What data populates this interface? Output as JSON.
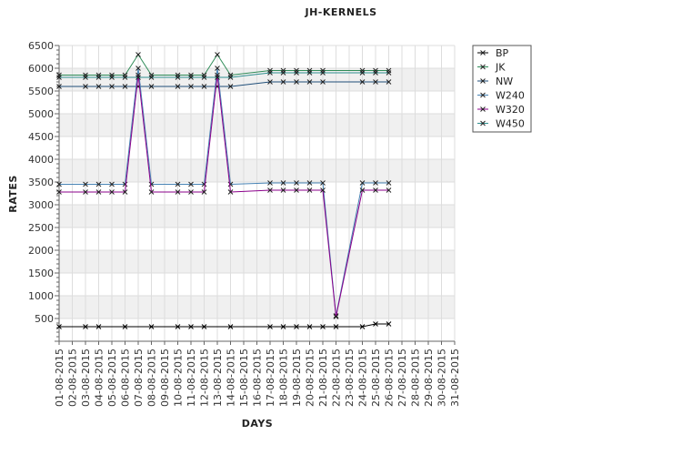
{
  "chart_data": {
    "type": "line",
    "title": "JH-KERNELS",
    "xlabel": "DAYS",
    "ylabel": "RATES",
    "ylim": [
      0,
      6500
    ],
    "yticks": [
      500,
      1000,
      1500,
      2000,
      2500,
      3000,
      3500,
      4000,
      4500,
      5000,
      5500,
      6000,
      6500
    ],
    "grid": true,
    "legend_position": "right",
    "categories": [
      "01-08-2015",
      "02-08-2015",
      "03-08-2015",
      "04-08-2015",
      "05-08-2015",
      "06-08-2015",
      "07-08-2015",
      "08-08-2015",
      "09-08-2015",
      "10-08-2015",
      "11-08-2015",
      "12-08-2015",
      "13-08-2015",
      "14-08-2015",
      "15-08-2015",
      "16-08-2015",
      "17-08-2015",
      "18-08-2015",
      "19-08-2015",
      "20-08-2015",
      "21-08-2015",
      "22-08-2015",
      "23-08-2015",
      "24-08-2015",
      "25-08-2015",
      "26-08-2015",
      "27-08-2015",
      "28-08-2015",
      "29-08-2015",
      "30-08-2015",
      "31-08-2015"
    ],
    "series": [
      {
        "name": "BP",
        "color": "#000000",
        "values": [
          320,
          null,
          320,
          320,
          null,
          320,
          null,
          320,
          null,
          320,
          320,
          320,
          null,
          320,
          null,
          null,
          320,
          320,
          320,
          320,
          320,
          320,
          null,
          320,
          380,
          380,
          null,
          null,
          null,
          null,
          null
        ]
      },
      {
        "name": "JK",
        "color": "#2e8b57",
        "values": [
          5850,
          null,
          5850,
          5850,
          5850,
          5850,
          6300,
          5850,
          null,
          5850,
          5850,
          5850,
          6300,
          5850,
          null,
          null,
          5950,
          5950,
          5950,
          5950,
          5950,
          null,
          null,
          5950,
          5950,
          5950,
          null,
          null,
          null,
          null,
          null
        ]
      },
      {
        "name": "NW",
        "color": "#1f4e79",
        "values": [
          5600,
          null,
          5600,
          5600,
          5600,
          5600,
          5600,
          5600,
          null,
          5600,
          5600,
          5600,
          5600,
          5600,
          null,
          null,
          5700,
          5700,
          5700,
          5700,
          5700,
          null,
          null,
          5700,
          5700,
          5700,
          null,
          null,
          null,
          null,
          null
        ]
      },
      {
        "name": "W240",
        "color": "#4682b4",
        "values": [
          3450,
          null,
          3450,
          3450,
          3450,
          3450,
          6000,
          3450,
          null,
          3450,
          3450,
          3450,
          6000,
          3450,
          null,
          null,
          3480,
          3480,
          3480,
          3480,
          3480,
          560,
          null,
          3480,
          3480,
          3480,
          null,
          null,
          null,
          null,
          null
        ]
      },
      {
        "name": "W320",
        "color": "#8b008b",
        "values": [
          3280,
          null,
          3280,
          3280,
          3280,
          3280,
          5850,
          3280,
          null,
          3280,
          3280,
          3280,
          5850,
          3280,
          null,
          null,
          3320,
          3320,
          3320,
          3320,
          3320,
          540,
          null,
          3320,
          3320,
          3320,
          null,
          null,
          null,
          null,
          null
        ]
      },
      {
        "name": "W450",
        "color": "#2f8f8f",
        "values": [
          5800,
          null,
          5800,
          5800,
          5800,
          5800,
          5800,
          5800,
          null,
          5800,
          5800,
          5800,
          5800,
          5800,
          null,
          null,
          5900,
          5900,
          5900,
          5900,
          5900,
          null,
          null,
          5900,
          5900,
          5900,
          null,
          null,
          null,
          null,
          null
        ]
      }
    ]
  }
}
